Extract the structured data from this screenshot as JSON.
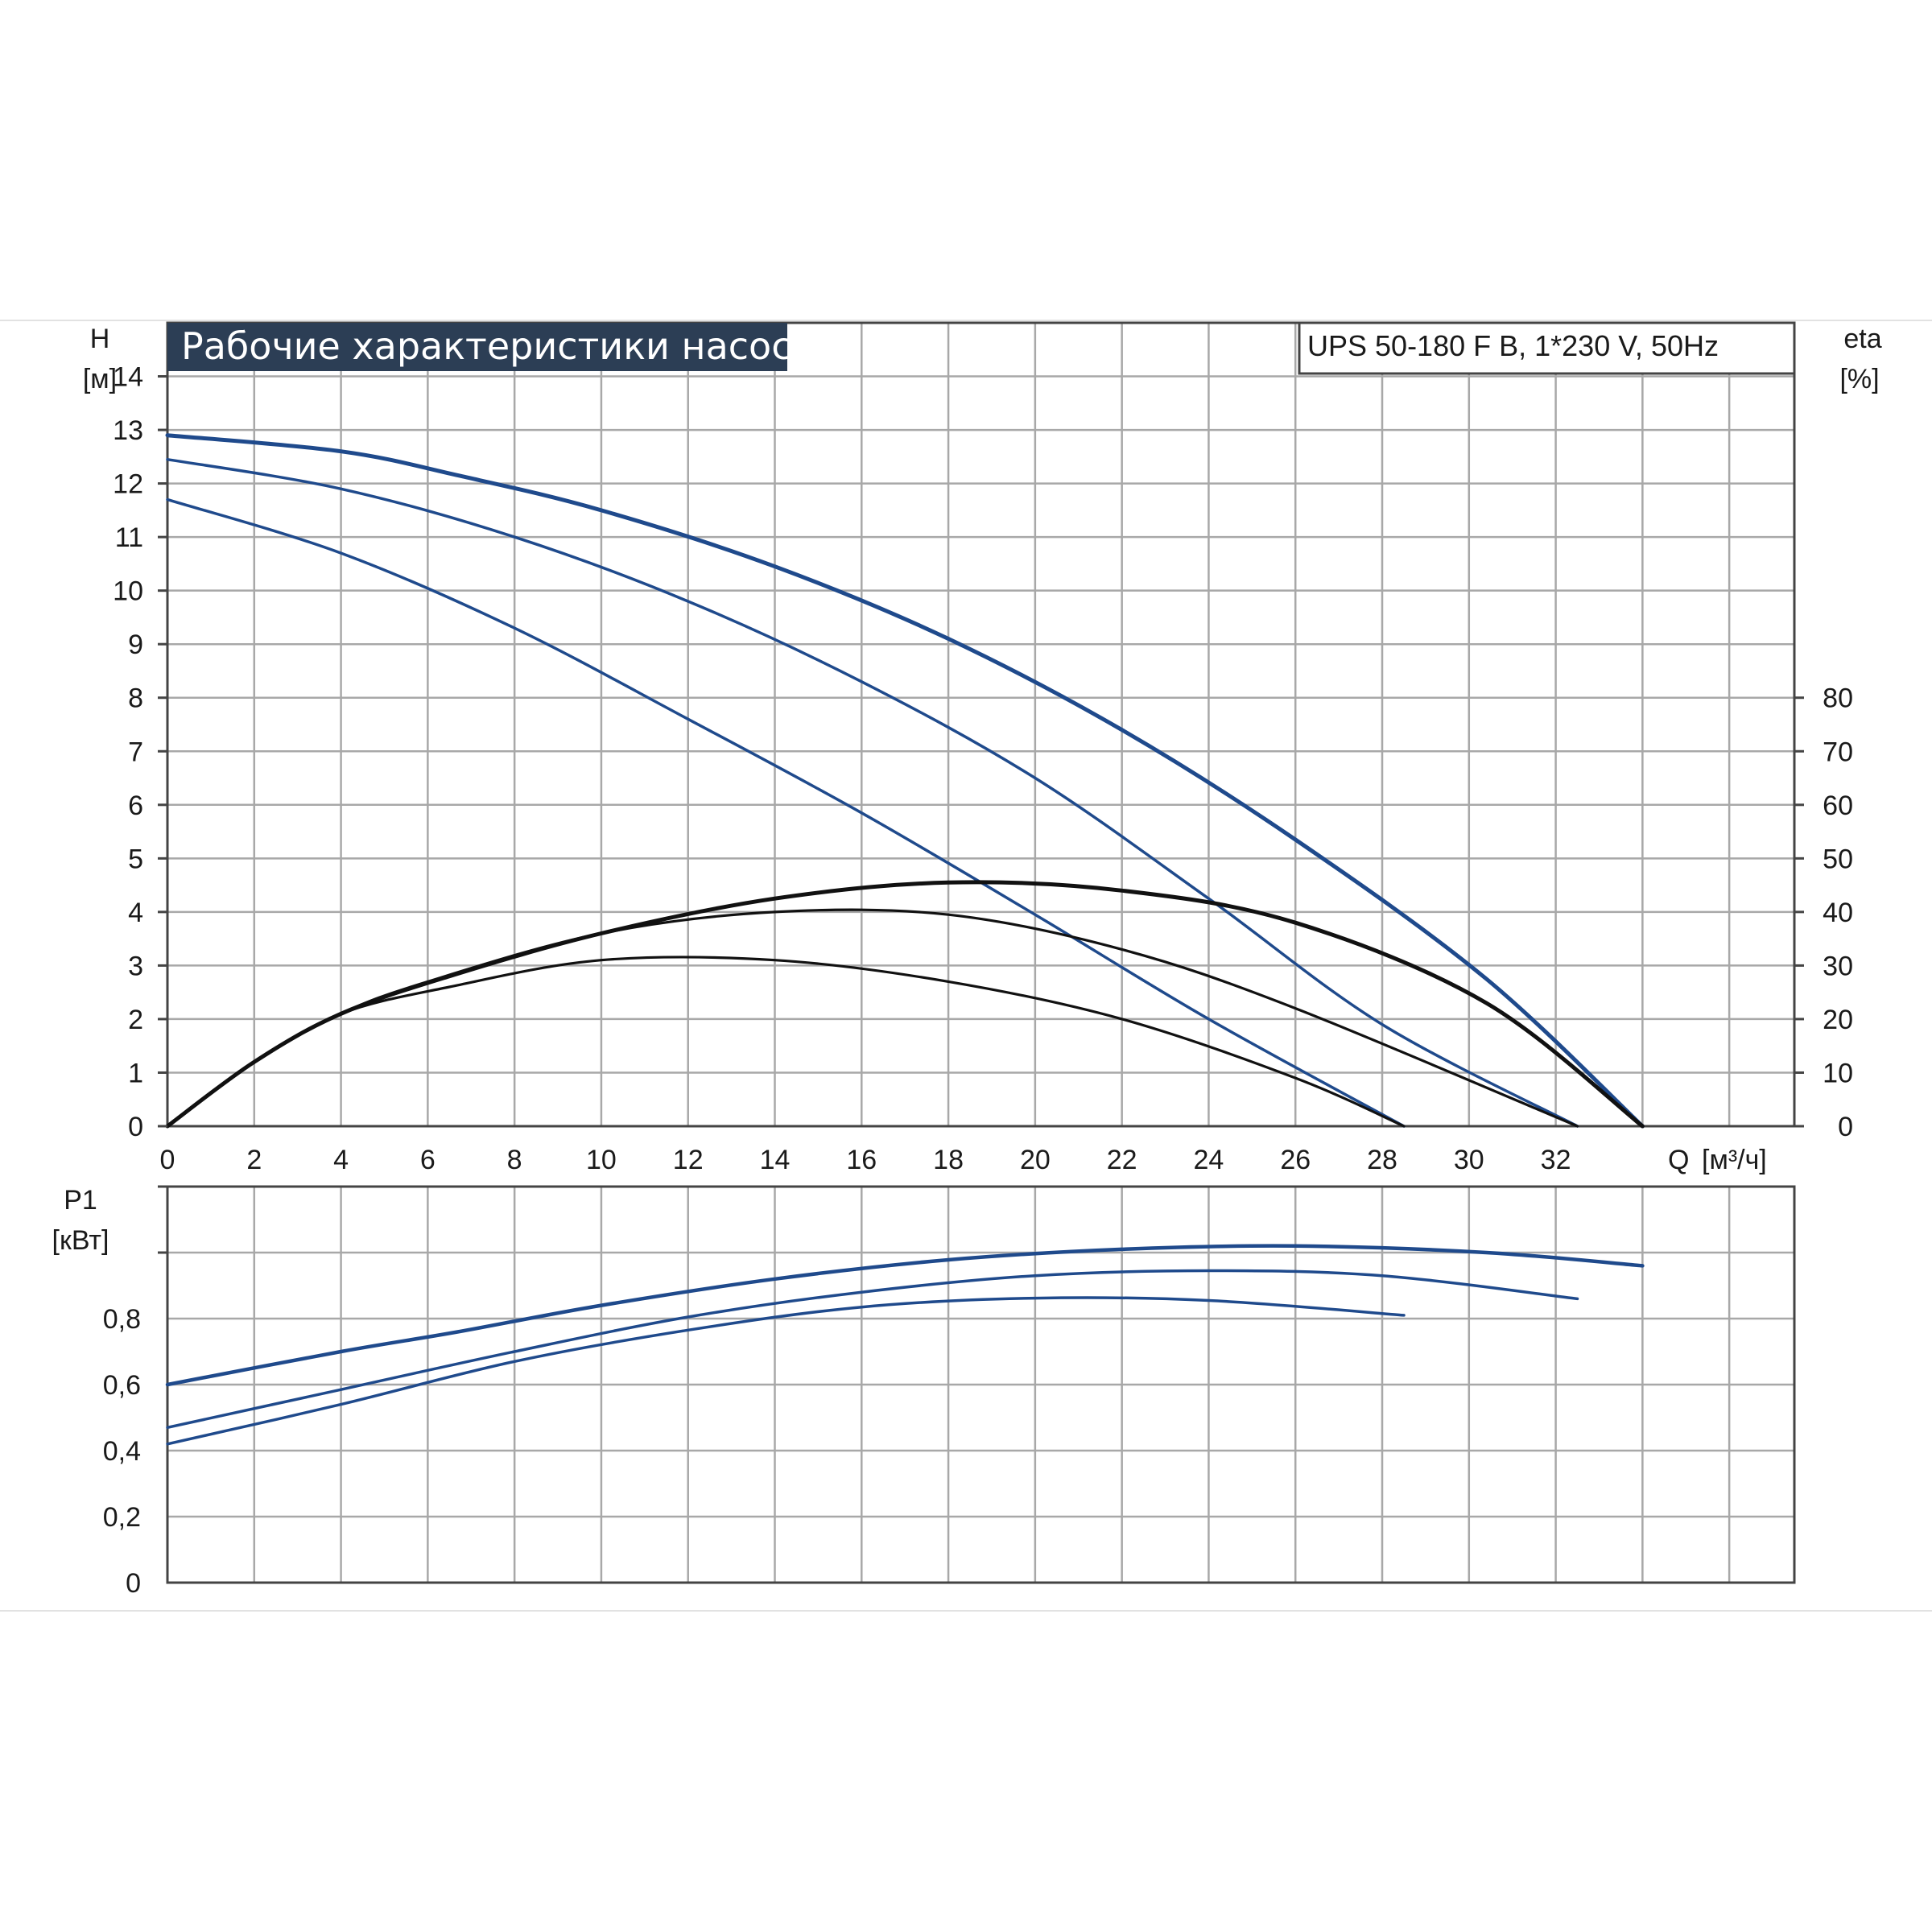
{
  "chart_data": [
    {
      "type": "line",
      "title": "Рабочие характеристики насоса",
      "subtitle": "UPS 50-180 F B, 1*230 V, 50Hz",
      "ylabel": "H",
      "yunit": "[м]",
      "y2label": "eta",
      "y2unit": "[%]",
      "xlabel": "Q",
      "xunit": "[м³/ч]",
      "xlim": [
        0,
        37.5
      ],
      "ylim": [
        0,
        15
      ],
      "y2lim": [
        0,
        150
      ],
      "x_ticks": [
        "0",
        "2",
        "4",
        "6",
        "8",
        "10",
        "12",
        "14",
        "16",
        "18",
        "20",
        "22",
        "24",
        "26",
        "28",
        "30",
        "32"
      ],
      "y_ticks": [
        "0",
        "1",
        "2",
        "3",
        "4",
        "5",
        "6",
        "7",
        "8",
        "9",
        "10",
        "11",
        "12",
        "13",
        "14"
      ],
      "y2_ticks": [
        "0",
        "10",
        "20",
        "30",
        "40",
        "50",
        "60",
        "70",
        "80"
      ],
      "grid": true,
      "head_series": [
        {
          "role": "head-speed-3",
          "x": [
            0,
            4,
            6.7,
            10,
            14,
            18,
            22,
            26,
            30.4,
            34
          ],
          "y": [
            12.9,
            12.6,
            12.15,
            11.5,
            10.45,
            9.1,
            7.4,
            5.35,
            2.75,
            0
          ]
        },
        {
          "role": "head-speed-2",
          "x": [
            0,
            4,
            8,
            12,
            16,
            20,
            24,
            28,
            32.5
          ],
          "y": [
            12.45,
            11.9,
            11.0,
            9.8,
            8.3,
            6.5,
            4.25,
            1.9,
            0
          ]
        },
        {
          "role": "head-speed-1",
          "x": [
            0,
            4,
            8,
            12,
            16,
            20,
            24,
            28.5
          ],
          "y": [
            11.7,
            10.7,
            9.3,
            7.6,
            5.85,
            3.95,
            2.0,
            0
          ]
        }
      ],
      "efficiency_series": [
        {
          "role": "eta-speed-3",
          "x": [
            0,
            2,
            4,
            6.5,
            10,
            14,
            18,
            22,
            26,
            30.4,
            34
          ],
          "y": [
            0,
            12,
            21,
            28,
            36,
            42.5,
            45.5,
            44,
            38,
            23,
            0
          ]
        },
        {
          "role": "eta-speed-2",
          "x": [
            0,
            2,
            4,
            6,
            10,
            14,
            18,
            22,
            26,
            32.5
          ],
          "y": [
            0,
            12,
            21,
            27,
            36,
            40,
            39.5,
            33,
            22,
            0
          ]
        },
        {
          "role": "eta-speed-1",
          "x": [
            0,
            2,
            4,
            6.5,
            10,
            14,
            18,
            22,
            26,
            28.5
          ],
          "y": [
            0,
            12,
            21,
            26,
            31,
            31,
            27,
            20,
            9,
            0
          ]
        }
      ]
    },
    {
      "type": "line",
      "ylabel": "P1",
      "yunit": "[кВт]",
      "xlim": [
        0,
        37.5
      ],
      "ylim": [
        0,
        1.2
      ],
      "y_ticks": [
        "0",
        "0,2",
        "0,4",
        "0,6",
        "0,8"
      ],
      "grid": true,
      "power_series": [
        {
          "role": "p1-speed-3",
          "x": [
            0,
            4,
            6.7,
            10,
            14,
            18,
            22,
            26,
            30.4,
            34
          ],
          "y": [
            0.6,
            0.7,
            0.76,
            0.84,
            0.92,
            0.978,
            1.01,
            1.02,
            1.0,
            0.96
          ]
        },
        {
          "role": "p1-speed-2",
          "x": [
            0,
            4,
            8,
            12,
            16,
            20,
            24,
            28,
            32.5
          ],
          "y": [
            0.47,
            0.585,
            0.7,
            0.805,
            0.88,
            0.93,
            0.945,
            0.93,
            0.86
          ]
        },
        {
          "role": "p1-speed-1",
          "x": [
            0,
            4,
            8,
            12,
            16,
            20,
            24,
            28.5
          ],
          "y": [
            0.42,
            0.54,
            0.67,
            0.765,
            0.835,
            0.862,
            0.855,
            0.81
          ]
        }
      ]
    }
  ],
  "colors": {
    "blue": "#1f4a8c",
    "black": "#111111",
    "title_bg": "#2c3e55",
    "grid": "#a8a8a8"
  }
}
